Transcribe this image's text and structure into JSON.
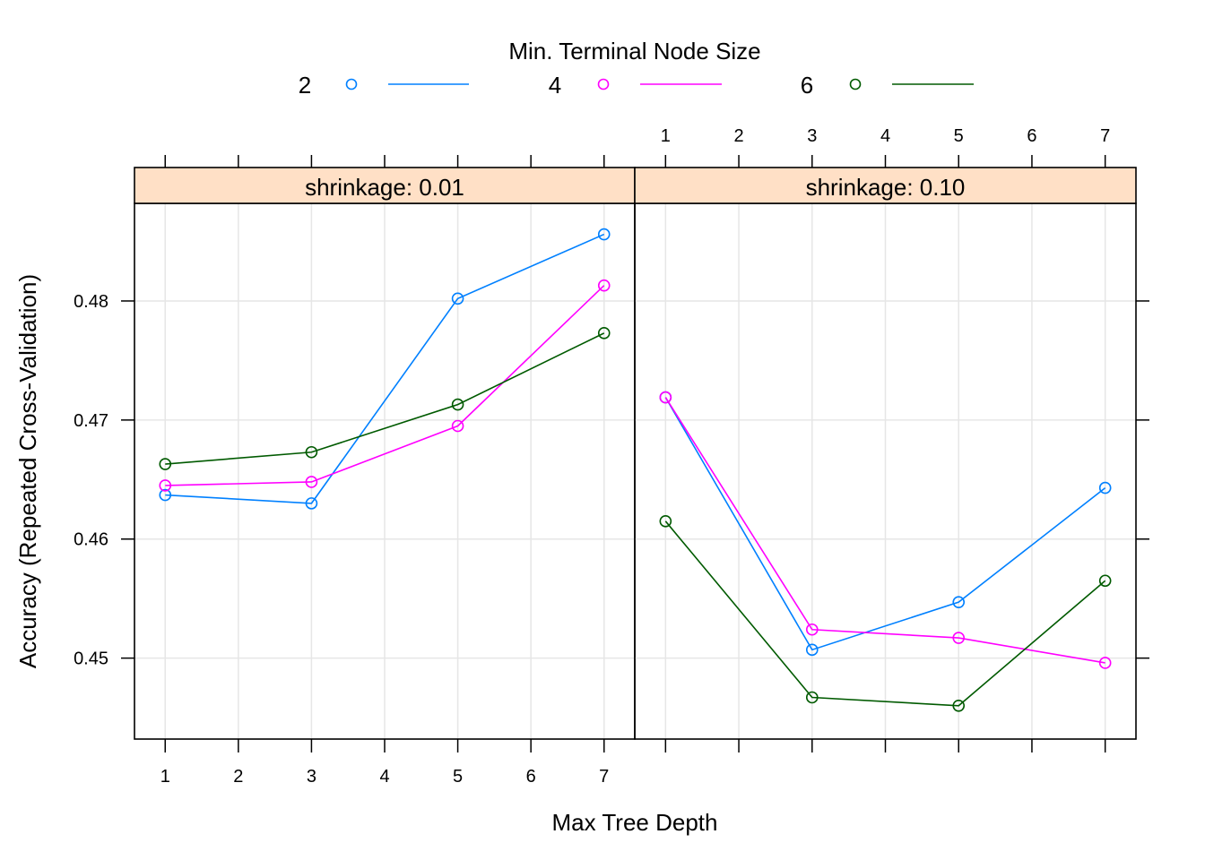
{
  "chart_data": {
    "type": "line",
    "xlabel": "Max Tree Depth",
    "ylabel": "Accuracy (Repeated Cross-Validation)",
    "legend": {
      "title": "Min. Terminal Node Size",
      "placement": "top",
      "entries": [
        {
          "label": "2",
          "color": "#0080ff"
        },
        {
          "label": "4",
          "color": "#ff00ff"
        },
        {
          "label": "6",
          "color": "#005a00"
        }
      ]
    },
    "x_ticks": [
      "1",
      "2",
      "3",
      "4",
      "5",
      "6",
      "7"
    ],
    "x_tick_values": [
      1,
      2,
      3,
      4,
      5,
      6,
      7
    ],
    "xlim": [
      0.58,
      7.42
    ],
    "y_ticks": [
      "0.45",
      "0.46",
      "0.47",
      "0.48"
    ],
    "y_tick_values": [
      0.45,
      0.46,
      0.47,
      0.48
    ],
    "ylim": [
      0.4432,
      0.4882
    ],
    "grid": true,
    "strip_color": "#ffe0c6",
    "panels": [
      {
        "strip": "shrinkage: 0.01",
        "x": [
          1,
          3,
          5,
          7
        ],
        "series": [
          {
            "name": "2",
            "color": "#0080ff",
            "values": [
              0.4637,
              0.463,
              0.4802,
              0.4856
            ]
          },
          {
            "name": "4",
            "color": "#ff00ff",
            "values": [
              0.4645,
              0.4648,
              0.4695,
              0.4813
            ]
          },
          {
            "name": "6",
            "color": "#005a00",
            "values": [
              0.4663,
              0.4673,
              0.4713,
              0.4773
            ]
          }
        ]
      },
      {
        "strip": "shrinkage: 0.10",
        "x": [
          1,
          3,
          5,
          7
        ],
        "series": [
          {
            "name": "2",
            "color": "#0080ff",
            "values": [
              0.4719,
              0.4507,
              0.4547,
              0.4643
            ]
          },
          {
            "name": "4",
            "color": "#ff00ff",
            "values": [
              0.4719,
              0.4524,
              0.4517,
              0.4496
            ]
          },
          {
            "name": "6",
            "color": "#005a00",
            "values": [
              0.4615,
              0.4467,
              0.446,
              0.4565
            ]
          }
        ]
      }
    ]
  }
}
